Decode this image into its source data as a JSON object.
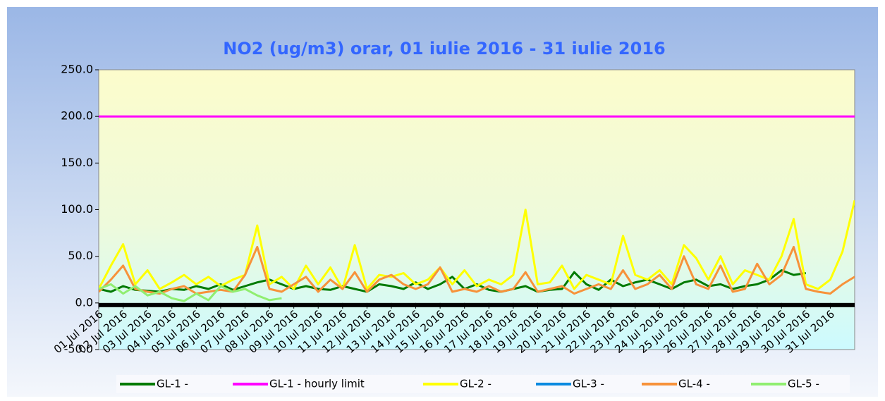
{
  "chart_data": {
    "type": "line",
    "title": "NO2 (ug/m3) orar, 01 iulie 2016 - 31 iulie 2016",
    "x": [
      0,
      0.5,
      1,
      1.5,
      2,
      2.5,
      3,
      3.5,
      4,
      4.5,
      5,
      5.5,
      6,
      6.5,
      7,
      7.5,
      8,
      8.5,
      9,
      9.5,
      10,
      10.5,
      11,
      11.5,
      12,
      12.5,
      13,
      13.5,
      14,
      14.5,
      15,
      15.5,
      16,
      16.5,
      17,
      17.5,
      18,
      18.5,
      19,
      19.5,
      20,
      20.5,
      21,
      21.5,
      22,
      22.5,
      23,
      23.5,
      24,
      24.5,
      25,
      25.5,
      26,
      26.5,
      27,
      27.5,
      28,
      28.5,
      29,
      29.5,
      30,
      30.5,
      31
    ],
    "series": [
      {
        "name": "GL-1 -",
        "color": "#007a00",
        "values": [
          15,
          12,
          18,
          14,
          13,
          12,
          15,
          14,
          18,
          15,
          20,
          14,
          18,
          22,
          25,
          20,
          15,
          18,
          15,
          14,
          18,
          15,
          12,
          20,
          18,
          15,
          22,
          15,
          20,
          28,
          15,
          20,
          14,
          12,
          15,
          18,
          12,
          14,
          15,
          33,
          20,
          14,
          25,
          18,
          22,
          25,
          20,
          15,
          22,
          25,
          18,
          20,
          15,
          18,
          20,
          25,
          35,
          30,
          32,
          null,
          null,
          null,
          null
        ]
      },
      {
        "name": "GL-1 - hourly limit",
        "color": "#ff00ff",
        "values": [
          200,
          200,
          200,
          200,
          200,
          200,
          200,
          200,
          200,
          200,
          200,
          200,
          200,
          200,
          200,
          200,
          200,
          200,
          200,
          200,
          200,
          200,
          200,
          200,
          200,
          200,
          200,
          200,
          200,
          200,
          200,
          200,
          200,
          200,
          200,
          200,
          200,
          200,
          200,
          200,
          200,
          200,
          200,
          200,
          200,
          200,
          200,
          200,
          200,
          200,
          200,
          200,
          200,
          200,
          200,
          200,
          200,
          200,
          200,
          200,
          200,
          200,
          200
        ]
      },
      {
        "name": "GL-2 -",
        "color": "#ffff00",
        "values": [
          15,
          40,
          63,
          20,
          35,
          15,
          22,
          30,
          20,
          28,
          18,
          25,
          30,
          83,
          20,
          28,
          15,
          40,
          20,
          38,
          15,
          62,
          15,
          30,
          28,
          32,
          20,
          25,
          38,
          20,
          35,
          18,
          25,
          20,
          30,
          100,
          20,
          22,
          40,
          15,
          30,
          25,
          20,
          72,
          30,
          25,
          35,
          20,
          62,
          48,
          25,
          50,
          20,
          35,
          30,
          25,
          50,
          90,
          20,
          15,
          25,
          55,
          110
        ]
      },
      {
        "name": "GL-3 -",
        "color": "#0a8ae0",
        "values": [
          null,
          null,
          null,
          null,
          null,
          null,
          null,
          null,
          null,
          null,
          null,
          null,
          null,
          null,
          null,
          null,
          null,
          null,
          null,
          null,
          null,
          null,
          null,
          null,
          null,
          null,
          null,
          null,
          null,
          null,
          null,
          null,
          null,
          null,
          null,
          null,
          null,
          null,
          null,
          null,
          null,
          null,
          null,
          null,
          null,
          null,
          null,
          null,
          null,
          null,
          null,
          null,
          null,
          null,
          null,
          null,
          null,
          null,
          null,
          null,
          null,
          null,
          null
        ]
      },
      {
        "name": "GL-4 -",
        "color": "#f7923a",
        "values": [
          12,
          25,
          40,
          15,
          12,
          10,
          15,
          18,
          10,
          12,
          14,
          12,
          30,
          60,
          15,
          12,
          20,
          28,
          12,
          25,
          15,
          33,
          12,
          25,
          30,
          20,
          15,
          20,
          38,
          12,
          15,
          12,
          18,
          12,
          15,
          33,
          12,
          15,
          18,
          10,
          15,
          20,
          15,
          35,
          15,
          20,
          30,
          15,
          50,
          20,
          15,
          40,
          12,
          15,
          42,
          20,
          30,
          60,
          15,
          12,
          10,
          20,
          28
        ]
      },
      {
        "name": "GL-5 -",
        "color": "#90ee70",
        "values": [
          15,
          20,
          10,
          18,
          8,
          12,
          5,
          2,
          10,
          3,
          18,
          12,
          15,
          8,
          3,
          5,
          null,
          null,
          null,
          null,
          null,
          null,
          null,
          null,
          null,
          null,
          null,
          null,
          null,
          null,
          null,
          null,
          null,
          null,
          null,
          null,
          null,
          null,
          null,
          null,
          null,
          null,
          null,
          null,
          null,
          null,
          null,
          null,
          null,
          null,
          null,
          null,
          null,
          null,
          null,
          null,
          null,
          null,
          null,
          null,
          null,
          null,
          null
        ]
      }
    ],
    "xlim": [
      0,
      31
    ],
    "xticks": [
      {
        "value": 0,
        "label": "01 Jul 2016"
      },
      {
        "value": 1,
        "label": "02 Jul 2016"
      },
      {
        "value": 2,
        "label": "03 Jul 2016"
      },
      {
        "value": 3,
        "label": "04 Jul 2016"
      },
      {
        "value": 4,
        "label": "05 Jul 2016"
      },
      {
        "value": 5,
        "label": "06 Jul 2016"
      },
      {
        "value": 6,
        "label": "07 Jul 2016"
      },
      {
        "value": 7,
        "label": "08 Jul 2016"
      },
      {
        "value": 8,
        "label": "09 Jul 2016"
      },
      {
        "value": 9,
        "label": "10 Jul 2016"
      },
      {
        "value": 10,
        "label": "11 Jul 2016"
      },
      {
        "value": 11,
        "label": "12 Jul 2016"
      },
      {
        "value": 12,
        "label": "13 Jul 2016"
      },
      {
        "value": 13,
        "label": "14 Jul 2016"
      },
      {
        "value": 14,
        "label": "15 Jul 2016"
      },
      {
        "value": 15,
        "label": "16 Jul 2016"
      },
      {
        "value": 16,
        "label": "17 Jul 2016"
      },
      {
        "value": 17,
        "label": "18 Jul 2016"
      },
      {
        "value": 18,
        "label": "19 Jul 2016"
      },
      {
        "value": 19,
        "label": "20 Jul 2016"
      },
      {
        "value": 20,
        "label": "21 Jul 2016"
      },
      {
        "value": 21,
        "label": "22 Jul 2016"
      },
      {
        "value": 22,
        "label": "23 Jul 2016"
      },
      {
        "value": 23,
        "label": "24 Jul 2016"
      },
      {
        "value": 24,
        "label": "25 Jul 2016"
      },
      {
        "value": 25,
        "label": "26 Jul 2016"
      },
      {
        "value": 26,
        "label": "27 Jul 2016"
      },
      {
        "value": 27,
        "label": "28 Jul 2016"
      },
      {
        "value": 28,
        "label": "29 Jul 2016"
      },
      {
        "value": 29,
        "label": "30 Jul 2016"
      },
      {
        "value": 30,
        "label": "31 Jul 2016"
      }
    ],
    "ylim": [
      -50,
      250
    ],
    "yticks": [
      {
        "value": -50,
        "label": "-50.0"
      },
      {
        "value": 0,
        "label": "0.0"
      },
      {
        "value": 50,
        "label": "50.0"
      },
      {
        "value": 100,
        "label": "100.0"
      },
      {
        "value": 150,
        "label": "150.0"
      },
      {
        "value": 200,
        "label": "200.0"
      },
      {
        "value": 250,
        "label": "250.0"
      }
    ],
    "legend": "bottom"
  }
}
